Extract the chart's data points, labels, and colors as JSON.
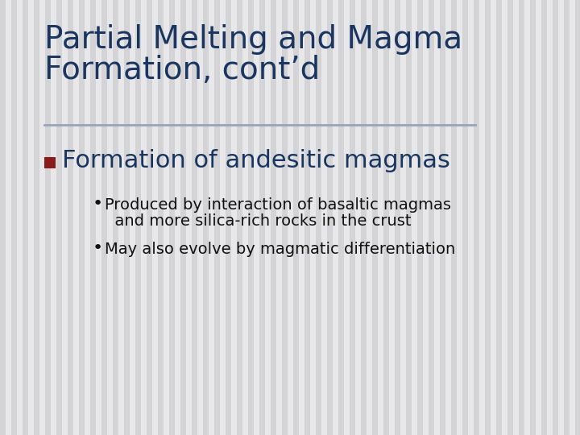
{
  "title_line1": "Partial Melting and Magma",
  "title_line2": "Formation, cont’d",
  "title_color": "#1a3560",
  "title_fontsize": 28,
  "bullet1_text": "Formation of andesitic magmas",
  "bullet1_color": "#1a3560",
  "bullet1_fontsize": 22,
  "bullet1_square_color": "#8b1a1a",
  "sub_bullet1_line1": "Produced by interaction of basaltic magmas",
  "sub_bullet1_line2": "  and more silica-rich rocks in the crust",
  "sub_bullet2": "May also evolve by magmatic differentiation",
  "sub_bullet_color": "#111111",
  "sub_bullet_fontsize": 14,
  "background_color": "#e8e8ea",
  "stripe_color_light": "#e0e0e2",
  "stripe_color_dark": "#d4d4d6",
  "divider_color": "#9aa4b8",
  "divider_lw": 2.0
}
